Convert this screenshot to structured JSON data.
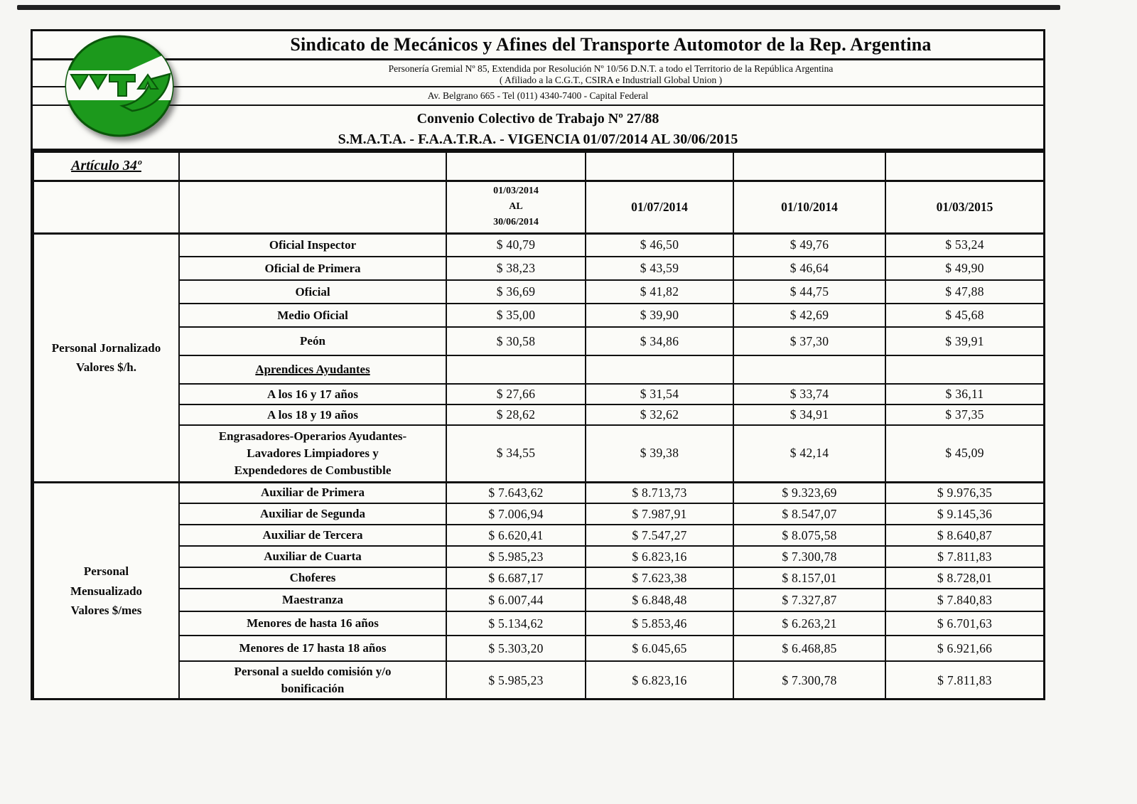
{
  "page": {
    "background": "#f6f6f3",
    "paper": "#fbfbf8",
    "line_color": "#101010",
    "logo_green": "#1c991c"
  },
  "header": {
    "title": "Sindicato de Mecánicos y Afines del Transporte Automotor de la Rep. Argentina",
    "personeria": "Personería Gremial Nº 85, Extendida por Resolución Nº 10/56 D.N.T. a todo el Territorio de la República Argentina",
    "affiliation": "( Afiliado a la C.G.T., CSIRA e Industriall Global Union )",
    "address": "Av. Belgrano 665 - Tel (011) 4340-7400 - Capital Federal",
    "convenio_title": "Convenio Colectivo de Trabajo Nº 27/88",
    "convenio_vigencia": "S.M.A.T.A. - F.A.A.T.R.A. - VIGENCIA 01/07/2014 AL 30/06/2015",
    "logo_name": "smata-logo"
  },
  "table": {
    "article_label": "Artículo 34º",
    "period_headers": [
      "01/03/2014\nAL\n30/06/2014",
      "01/07/2014",
      "01/10/2014",
      "01/03/2015"
    ],
    "groups": [
      {
        "label": "Personal Jornalizado\nValores $/h.",
        "rows": [
          {
            "category": "Oficial Inspector",
            "values": [
              "$ 40,79",
              "$ 46,50",
              "$ 49,76",
              "$ 53,24"
            ]
          },
          {
            "category": "Oficial de Primera",
            "values": [
              "$ 38,23",
              "$ 43,59",
              "$ 46,64",
              "$ 49,90"
            ]
          },
          {
            "category": "Oficial",
            "values": [
              "$ 36,69",
              "$ 41,82",
              "$ 44,75",
              "$ 47,88"
            ]
          },
          {
            "category": "Medio Oficial",
            "values": [
              "$ 35,00",
              "$ 39,90",
              "$ 42,69",
              "$ 45,68"
            ]
          },
          {
            "category": "Peón",
            "values": [
              "$ 30,58",
              "$ 34,86",
              "$ 37,30",
              "$ 39,91"
            ]
          },
          {
            "category": "Aprendices Ayudantes",
            "subheader": true,
            "values": [
              "",
              "",
              "",
              ""
            ]
          },
          {
            "category": "A los 16 y 17 años",
            "values": [
              "$ 27,66",
              "$ 31,54",
              "$ 33,74",
              "$ 36,11"
            ]
          },
          {
            "category": "A los 18 y 19 años",
            "values": [
              "$ 28,62",
              "$ 32,62",
              "$ 34,91",
              "$ 37,35"
            ]
          },
          {
            "category": "Engrasadores-Operarios Ayudantes-\nLavadores Limpiadores y\nExpendedores de Combustible",
            "values": [
              "$ 34,55",
              "$ 39,38",
              "$ 42,14",
              "$ 45,09"
            ]
          }
        ]
      },
      {
        "label": "Personal\nMensualizado\nValores $/mes",
        "rows": [
          {
            "category": "Auxiliar de Primera",
            "values": [
              "$ 7.643,62",
              "$ 8.713,73",
              "$ 9.323,69",
              "$ 9.976,35"
            ]
          },
          {
            "category": "Auxiliar de Segunda",
            "values": [
              "$ 7.006,94",
              "$ 7.987,91",
              "$ 8.547,07",
              "$ 9.145,36"
            ]
          },
          {
            "category": "Auxiliar de Tercera",
            "values": [
              "$ 6.620,41",
              "$ 7.547,27",
              "$ 8.075,58",
              "$ 8.640,87"
            ]
          },
          {
            "category": "Auxiliar de Cuarta",
            "values": [
              "$ 5.985,23",
              "$ 6.823,16",
              "$ 7.300,78",
              "$ 7.811,83"
            ]
          },
          {
            "category": "Choferes",
            "values": [
              "$ 6.687,17",
              "$ 7.623,38",
              "$ 8.157,01",
              "$ 8.728,01"
            ]
          },
          {
            "category": "Maestranza",
            "values": [
              "$ 6.007,44",
              "$ 6.848,48",
              "$ 7.327,87",
              "$ 7.840,83"
            ]
          },
          {
            "category": "Menores de hasta 16 años",
            "values": [
              "$ 5.134,62",
              "$ 5.853,46",
              "$ 6.263,21",
              "$ 6.701,63"
            ]
          },
          {
            "category": "Menores de 17  hasta 18 años",
            "values": [
              "$ 5.303,20",
              "$ 6.045,65",
              "$ 6.468,85",
              "$ 6.921,66"
            ]
          },
          {
            "category": "Personal a sueldo comisión y/o\nbonificación",
            "values": [
              "$ 5.985,23",
              "$ 6.823,16",
              "$ 7.300,78",
              "$ 7.811,83"
            ]
          }
        ]
      }
    ]
  }
}
